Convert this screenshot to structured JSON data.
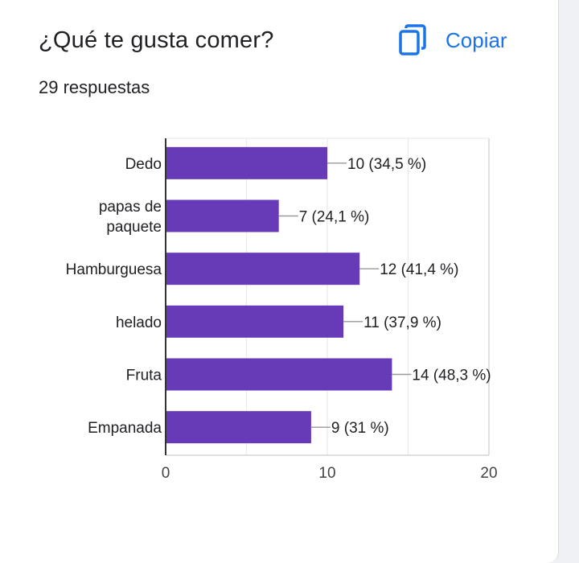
{
  "header": {
    "title": "¿Qué te gusta comer?",
    "response_count": "29 respuestas",
    "copy_label": "Copiar",
    "copy_icon": "copy-icon"
  },
  "colors": {
    "accent": "#1a73e8",
    "bar": "#673ab7"
  },
  "chart_data": {
    "type": "bar",
    "orientation": "horizontal",
    "categories": [
      [
        "Dedo"
      ],
      [
        "papas de",
        "paquete"
      ],
      [
        "Hamburguesa"
      ],
      [
        "helado"
      ],
      [
        "Fruta"
      ],
      [
        "Empanada"
      ]
    ],
    "values": [
      10,
      7,
      12,
      11,
      14,
      9
    ],
    "value_labels": [
      "10 (34,5 %)",
      "7 (24,1 %)",
      "12 (41,4 %)",
      "11 (37,9 %)",
      "14 (48,3 %)",
      "9 (31 %)"
    ],
    "xlim": [
      0,
      20
    ],
    "ticks": [
      "0",
      "10",
      "20"
    ],
    "grid": true
  }
}
